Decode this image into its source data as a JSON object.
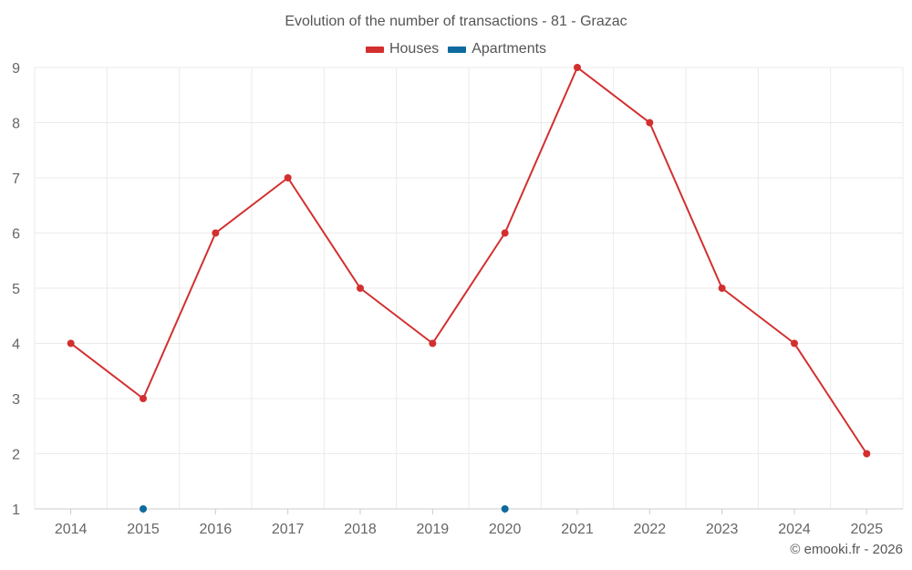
{
  "chart_data": {
    "type": "line",
    "title": "Evolution of the number of transactions - 81 - Grazac",
    "categories": [
      "2014",
      "2015",
      "2016",
      "2017",
      "2018",
      "2019",
      "2020",
      "2021",
      "2022",
      "2023",
      "2024",
      "2025"
    ],
    "series": [
      {
        "name": "Houses",
        "color": "#d32f2f",
        "values": [
          4,
          3,
          6,
          7,
          5,
          4,
          6,
          9,
          8,
          5,
          4,
          2
        ]
      },
      {
        "name": "Apartments",
        "color": "#0e6a9e",
        "values": [
          null,
          1,
          null,
          null,
          null,
          null,
          1,
          null,
          null,
          null,
          null,
          null
        ]
      }
    ],
    "yticks": [
      1,
      2,
      3,
      4,
      5,
      6,
      7,
      8,
      9
    ],
    "ylim": [
      1,
      9
    ],
    "xlabel": "",
    "ylabel": "",
    "grid": true,
    "legend_position": "top-center"
  },
  "credit": "© emooki.fr - 2026"
}
